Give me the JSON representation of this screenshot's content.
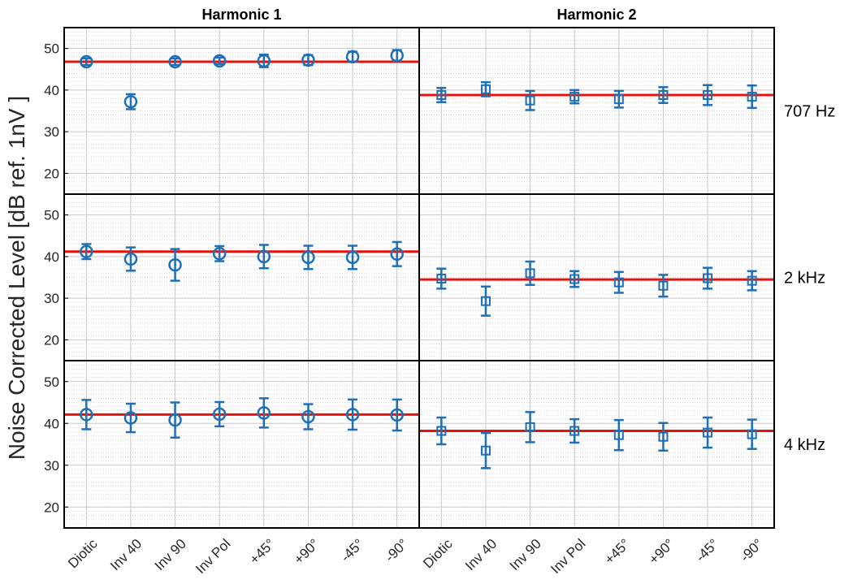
{
  "chart_data": {
    "type": "scatter",
    "ylabel": "Noise Corrected Level [dB ref. 1nV ]",
    "column_titles": [
      "Harmonic 1",
      "Harmonic 2"
    ],
    "row_labels": [
      "707 Hz",
      "2 kHz",
      "4 kHz"
    ],
    "categories": [
      "Diotic",
      "Inv 40",
      "Inv 90",
      "Inv Pol",
      "+45°",
      "+90°",
      "-45°",
      "-90°"
    ],
    "yticks": [
      20,
      30,
      40,
      50
    ],
    "ylim": [
      15,
      55
    ],
    "grid": true,
    "colors": {
      "markers": "#1f6fb6",
      "reference_line": "#e8120c",
      "grid": "#c8c8c8",
      "frame": "#000000"
    },
    "panels": [
      {
        "harmonic": "Harmonic 1",
        "frequency": "707 Hz",
        "marker": "circle",
        "reference": 46.8,
        "values": [
          46.8,
          37.2,
          46.8,
          47.0,
          47.0,
          47.2,
          48.0,
          48.3
        ],
        "errors": [
          0.8,
          1.8,
          0.8,
          0.8,
          1.5,
          1.2,
          1.2,
          1.3
        ]
      },
      {
        "harmonic": "Harmonic 2",
        "frequency": "707 Hz",
        "marker": "square",
        "reference": 38.8,
        "values": [
          38.8,
          40.2,
          37.5,
          38.4,
          37.8,
          38.8,
          38.8,
          38.4
        ],
        "errors": [
          1.7,
          1.7,
          2.3,
          1.6,
          2.0,
          1.9,
          2.4,
          2.7
        ]
      },
      {
        "harmonic": "Harmonic 1",
        "frequency": "2 kHz",
        "marker": "circle",
        "reference": 41.2,
        "values": [
          41.2,
          39.4,
          38.0,
          40.7,
          40.0,
          39.8,
          39.8,
          40.6
        ],
        "errors": [
          1.8,
          2.8,
          3.8,
          1.8,
          2.8,
          2.8,
          2.8,
          2.9
        ]
      },
      {
        "harmonic": "Harmonic 2",
        "frequency": "2 kHz",
        "marker": "square",
        "reference": 34.5,
        "values": [
          34.7,
          29.3,
          36.0,
          34.6,
          33.8,
          33.0,
          34.8,
          34.2
        ],
        "errors": [
          2.4,
          3.5,
          2.8,
          1.9,
          2.5,
          2.6,
          2.5,
          2.3
        ]
      },
      {
        "harmonic": "Harmonic 1",
        "frequency": "4 kHz",
        "marker": "circle",
        "reference": 42.1,
        "values": [
          42.1,
          41.3,
          40.8,
          42.2,
          42.5,
          41.6,
          42.1,
          42.0
        ],
        "errors": [
          3.5,
          3.4,
          4.2,
          2.9,
          3.5,
          3.0,
          3.6,
          3.7
        ]
      },
      {
        "harmonic": "Harmonic 2",
        "frequency": "4 kHz",
        "marker": "square",
        "reference": 38.2,
        "values": [
          38.2,
          33.5,
          39.1,
          38.2,
          37.2,
          36.8,
          37.8,
          37.4
        ],
        "errors": [
          3.2,
          4.2,
          3.6,
          2.8,
          3.6,
          3.3,
          3.6,
          3.5
        ]
      }
    ]
  }
}
